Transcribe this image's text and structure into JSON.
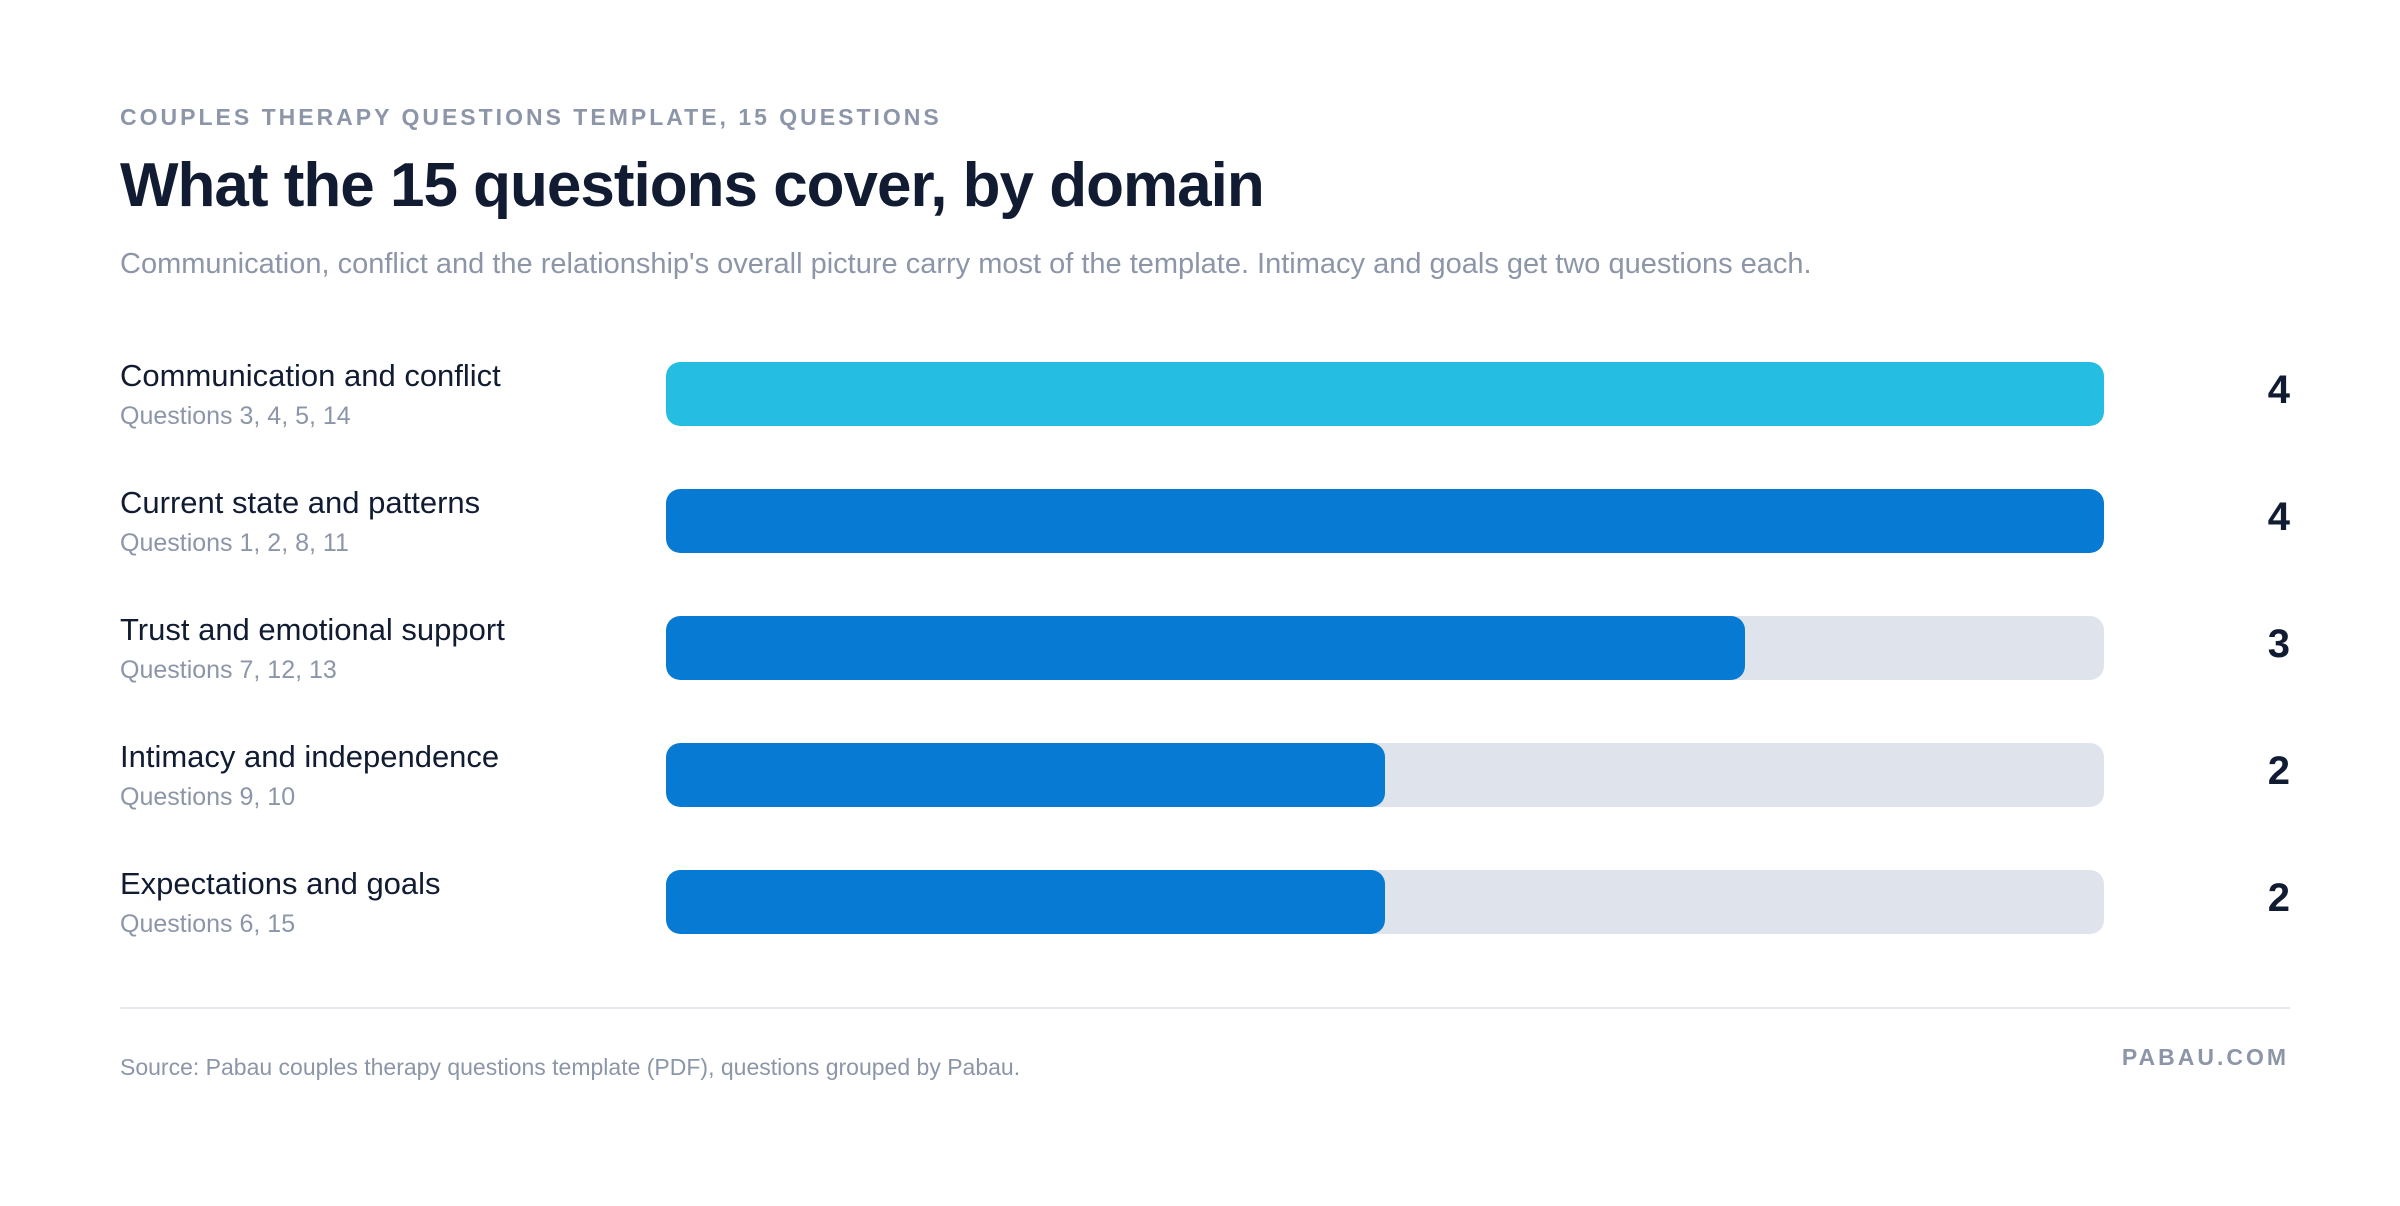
{
  "header": {
    "eyebrow": "COUPLES THERAPY QUESTIONS TEMPLATE, 15 QUESTIONS",
    "title": "What the 15 questions cover, by domain",
    "subtitle": "Communication, conflict and the relationship's overall picture carry most of the template. Intimacy and goals get two questions each."
  },
  "chart_data": {
    "type": "bar",
    "orientation": "horizontal",
    "categories": [
      "Communication and conflict",
      "Current state and patterns",
      "Trust and emotional support",
      "Intimacy and independence",
      "Expectations and goals"
    ],
    "sublabels": [
      "Questions 3, 4, 5, 14",
      "Questions 1, 2, 8, 11",
      "Questions 7, 12, 13",
      "Questions 9, 10",
      "Questions 6, 15"
    ],
    "values": [
      4,
      4,
      3,
      2,
      2
    ],
    "value_labels": [
      "4",
      "4",
      "3",
      "2",
      "2"
    ],
    "xlim": [
      0,
      4
    ],
    "bar_colors": [
      "#26bde2",
      "#077bd3",
      "#077bd3",
      "#077bd3",
      "#077bd3"
    ],
    "track_color": "#dfe3ec",
    "grid": false,
    "legend": "none"
  },
  "footer": {
    "source": "Source: Pabau couples therapy questions template (PDF), questions grouped by Pabau.",
    "brand": "PABAU.COM"
  }
}
